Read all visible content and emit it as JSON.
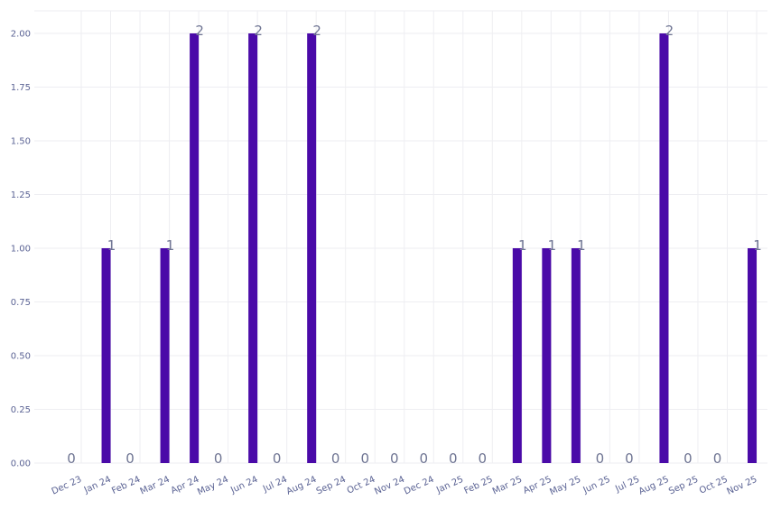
{
  "chart_data": {
    "type": "bar",
    "title": "",
    "xlabel": "",
    "ylabel": "",
    "categories": [
      "Dec 23",
      "Jan 24",
      "Feb 24",
      "Mar 24",
      "Apr 24",
      "May 24",
      "Jun 24",
      "Jul 24",
      "Aug 24",
      "Sep 24",
      "Oct 24",
      "Nov 24",
      "Dec 24",
      "Jan 25",
      "Feb 25",
      "Mar 25",
      "Apr 25",
      "May 25",
      "Jun 25",
      "Jul 25",
      "Aug 25",
      "Sep 25",
      "Oct 25",
      "Nov 25"
    ],
    "values": [
      0,
      1,
      0,
      1,
      2,
      0,
      2,
      0,
      2,
      0,
      0,
      0,
      0,
      0,
      0,
      1,
      1,
      1,
      0,
      0,
      2,
      0,
      0,
      1
    ],
    "ylim": [
      0,
      2
    ],
    "yticks": [
      "0.00",
      "0.25",
      "0.50",
      "0.75",
      "1.00",
      "1.25",
      "1.50",
      "1.75",
      "2.00"
    ],
    "grid": true,
    "bar_color": "#4a0aa8",
    "label_color": "#6f7593",
    "tick_color": "#5b6394"
  }
}
